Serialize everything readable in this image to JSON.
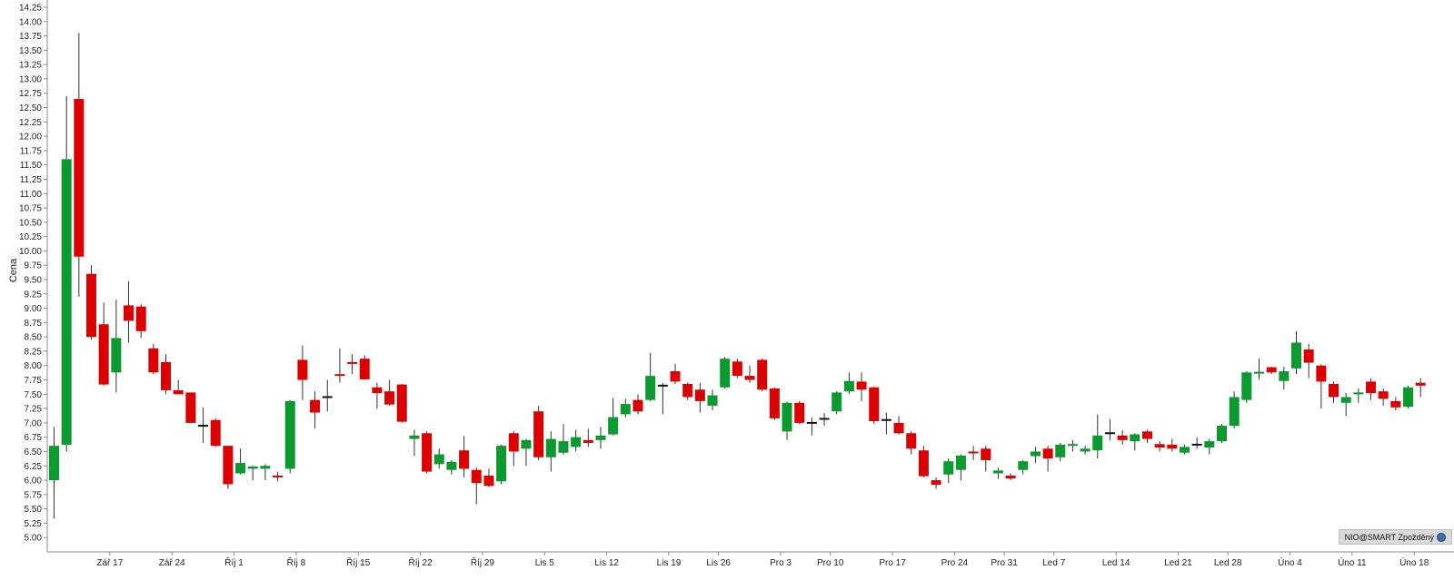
{
  "chart_data": {
    "type": "candlestick",
    "ylabel": "Cena",
    "ylim": [
      4.75,
      14.25
    ],
    "y_ticks": [
      "14.25",
      "14.00",
      "13.75",
      "13.50",
      "13.25",
      "13.00",
      "12.75",
      "12.50",
      "12.25",
      "12.00",
      "11.75",
      "11.50",
      "11.25",
      "11.00",
      "10.75",
      "10.50",
      "10.25",
      "10.00",
      "9.75",
      "9.50",
      "9.25",
      "9.00",
      "8.75",
      "8.50",
      "8.25",
      "8.00",
      "7.75",
      "7.50",
      "7.25",
      "7.00",
      "6.75",
      "6.50",
      "6.25",
      "6.00",
      "5.75",
      "5.50",
      "5.25",
      "5.00"
    ],
    "x_ticks": [
      {
        "label": "Zář 17",
        "index": 2
      },
      {
        "label": "Zář 24",
        "index": 7
      },
      {
        "label": "Říj 1",
        "index": 12
      },
      {
        "label": "Říj 8",
        "index": 17
      },
      {
        "label": "Říj 15",
        "index": 22
      },
      {
        "label": "Říj 22",
        "index": 27
      },
      {
        "label": "Říj 29",
        "index": 32
      },
      {
        "label": "Lis 5",
        "index": 37
      },
      {
        "label": "Lis 12",
        "index": 42
      },
      {
        "label": "Lis 19",
        "index": 47
      },
      {
        "label": "Lis 26",
        "index": 51
      },
      {
        "label": "Pro 3",
        "index": 56
      },
      {
        "label": "Pro 10",
        "index": 60
      },
      {
        "label": "Pro 17",
        "index": 65
      },
      {
        "label": "Pro 24",
        "index": 70
      },
      {
        "label": "Pro 31",
        "index": 74
      },
      {
        "label": "Led 7",
        "index": 78
      },
      {
        "label": "Led 14",
        "index": 83
      },
      {
        "label": "Led 21",
        "index": 88
      },
      {
        "label": "Led 28",
        "index": 92
      },
      {
        "label": "Úno 4",
        "index": 97
      },
      {
        "label": "Úno 11",
        "index": 102
      },
      {
        "label": "Úno 18",
        "index": 107
      }
    ],
    "colors": {
      "up": "#0a9a2f",
      "down": "#dd0000",
      "flat": "#111111",
      "wick": "#333333"
    },
    "candles": [
      {
        "o": 6.0,
        "h": 6.93,
        "l": 5.33,
        "c": 6.6
      },
      {
        "o": 6.62,
        "h": 12.7,
        "l": 6.5,
        "c": 11.6
      },
      {
        "o": 12.65,
        "h": 13.8,
        "l": 9.2,
        "c": 9.9
      },
      {
        "o": 9.6,
        "h": 9.75,
        "l": 8.45,
        "c": 8.5
      },
      {
        "o": 8.72,
        "h": 9.1,
        "l": 7.65,
        "c": 7.67
      },
      {
        "o": 7.88,
        "h": 9.15,
        "l": 7.53,
        "c": 8.48
      },
      {
        "o": 9.05,
        "h": 9.47,
        "l": 8.4,
        "c": 8.78
      },
      {
        "o": 9.03,
        "h": 9.07,
        "l": 8.48,
        "c": 8.6
      },
      {
        "o": 8.3,
        "h": 8.38,
        "l": 7.85,
        "c": 7.88
      },
      {
        "o": 8.06,
        "h": 8.2,
        "l": 7.5,
        "c": 7.57
      },
      {
        "o": 7.57,
        "h": 7.75,
        "l": 7.5,
        "c": 7.5
      },
      {
        "o": 7.53,
        "h": 7.53,
        "l": 7.0,
        "c": 7.0
      },
      {
        "o": 6.95,
        "h": 7.27,
        "l": 6.65,
        "c": 6.95
      },
      {
        "o": 7.05,
        "h": 7.08,
        "l": 6.58,
        "c": 6.6
      },
      {
        "o": 6.6,
        "h": 6.6,
        "l": 5.85,
        "c": 5.93
      },
      {
        "o": 6.12,
        "h": 6.55,
        "l": 6.1,
        "c": 6.3
      },
      {
        "o": 6.2,
        "h": 6.25,
        "l": 6.0,
        "c": 6.24
      },
      {
        "o": 6.2,
        "h": 6.28,
        "l": 6.0,
        "c": 6.25
      },
      {
        "o": 6.08,
        "h": 6.15,
        "l": 5.98,
        "c": 6.05
      },
      {
        "o": 6.2,
        "h": 7.4,
        "l": 6.12,
        "c": 7.38
      },
      {
        "o": 8.1,
        "h": 8.35,
        "l": 7.4,
        "c": 7.75
      },
      {
        "o": 7.4,
        "h": 7.55,
        "l": 6.9,
        "c": 7.18
      },
      {
        "o": 7.45,
        "h": 7.75,
        "l": 7.2,
        "c": 7.45
      },
      {
        "o": 7.85,
        "h": 8.3,
        "l": 7.7,
        "c": 7.82
      },
      {
        "o": 8.05,
        "h": 8.2,
        "l": 7.85,
        "c": 8.04
      },
      {
        "o": 8.12,
        "h": 8.18,
        "l": 7.75,
        "c": 7.76
      },
      {
        "o": 7.62,
        "h": 7.7,
        "l": 7.25,
        "c": 7.52
      },
      {
        "o": 7.55,
        "h": 7.75,
        "l": 7.3,
        "c": 7.32
      },
      {
        "o": 7.67,
        "h": 7.68,
        "l": 7.0,
        "c": 7.02
      },
      {
        "o": 6.72,
        "h": 6.88,
        "l": 6.42,
        "c": 6.78
      },
      {
        "o": 6.82,
        "h": 6.85,
        "l": 6.12,
        "c": 6.15
      },
      {
        "o": 6.28,
        "h": 6.55,
        "l": 6.2,
        "c": 6.45
      },
      {
        "o": 6.18,
        "h": 6.35,
        "l": 6.1,
        "c": 6.32
      },
      {
        "o": 6.52,
        "h": 6.77,
        "l": 6.05,
        "c": 6.2
      },
      {
        "o": 6.18,
        "h": 6.22,
        "l": 5.58,
        "c": 5.95
      },
      {
        "o": 6.08,
        "h": 6.2,
        "l": 5.88,
        "c": 5.9
      },
      {
        "o": 5.98,
        "h": 6.62,
        "l": 5.93,
        "c": 6.6
      },
      {
        "o": 6.82,
        "h": 6.85,
        "l": 6.25,
        "c": 6.5
      },
      {
        "o": 6.55,
        "h": 6.72,
        "l": 6.25,
        "c": 6.7
      },
      {
        "o": 7.2,
        "h": 7.3,
        "l": 6.35,
        "c": 6.4
      },
      {
        "o": 6.4,
        "h": 6.85,
        "l": 6.15,
        "c": 6.72
      },
      {
        "o": 6.48,
        "h": 6.98,
        "l": 6.45,
        "c": 6.68
      },
      {
        "o": 6.58,
        "h": 6.88,
        "l": 6.5,
        "c": 6.75
      },
      {
        "o": 6.7,
        "h": 6.9,
        "l": 6.58,
        "c": 6.65
      },
      {
        "o": 6.7,
        "h": 6.93,
        "l": 6.55,
        "c": 6.78
      },
      {
        "o": 6.8,
        "h": 7.43,
        "l": 6.78,
        "c": 7.1
      },
      {
        "o": 7.15,
        "h": 7.42,
        "l": 7.1,
        "c": 7.33
      },
      {
        "o": 7.4,
        "h": 7.5,
        "l": 7.15,
        "c": 7.2
      },
      {
        "o": 7.4,
        "h": 8.22,
        "l": 7.38,
        "c": 7.82
      },
      {
        "o": 7.65,
        "h": 7.7,
        "l": 7.15,
        "c": 7.65
      },
      {
        "o": 7.9,
        "h": 8.03,
        "l": 7.68,
        "c": 7.72
      },
      {
        "o": 7.68,
        "h": 7.7,
        "l": 7.4,
        "c": 7.45
      },
      {
        "o": 7.58,
        "h": 7.7,
        "l": 7.18,
        "c": 7.38
      },
      {
        "o": 7.3,
        "h": 7.58,
        "l": 7.22,
        "c": 7.48
      },
      {
        "o": 7.62,
        "h": 8.15,
        "l": 7.6,
        "c": 8.12
      },
      {
        "o": 8.07,
        "h": 8.12,
        "l": 7.78,
        "c": 7.82
      },
      {
        "o": 7.82,
        "h": 8.0,
        "l": 7.7,
        "c": 7.75
      },
      {
        "o": 8.1,
        "h": 8.12,
        "l": 7.55,
        "c": 7.58
      },
      {
        "o": 7.6,
        "h": 7.62,
        "l": 7.05,
        "c": 7.08
      },
      {
        "o": 6.85,
        "h": 7.37,
        "l": 6.7,
        "c": 7.35
      },
      {
        "o": 7.35,
        "h": 7.38,
        "l": 6.98,
        "c": 7.0
      },
      {
        "o": 7.0,
        "h": 7.1,
        "l": 6.78,
        "c": 7.0
      },
      {
        "o": 7.07,
        "h": 7.17,
        "l": 6.95,
        "c": 7.07
      },
      {
        "o": 7.2,
        "h": 7.55,
        "l": 7.15,
        "c": 7.53
      },
      {
        "o": 7.55,
        "h": 7.88,
        "l": 7.5,
        "c": 7.73
      },
      {
        "o": 7.72,
        "h": 7.88,
        "l": 7.38,
        "c": 7.58
      },
      {
        "o": 7.62,
        "h": 7.63,
        "l": 6.98,
        "c": 7.03
      },
      {
        "o": 7.05,
        "h": 7.18,
        "l": 6.8,
        "c": 7.05
      },
      {
        "o": 7.0,
        "h": 7.12,
        "l": 6.8,
        "c": 6.82
      },
      {
        "o": 6.82,
        "h": 6.85,
        "l": 6.45,
        "c": 6.55
      },
      {
        "o": 6.52,
        "h": 6.6,
        "l": 6.05,
        "c": 6.07
      },
      {
        "o": 6.0,
        "h": 6.05,
        "l": 5.85,
        "c": 5.92
      },
      {
        "o": 6.1,
        "h": 6.38,
        "l": 5.95,
        "c": 6.33
      },
      {
        "o": 6.18,
        "h": 6.45,
        "l": 6.0,
        "c": 6.43
      },
      {
        "o": 6.5,
        "h": 6.6,
        "l": 6.35,
        "c": 6.47
      },
      {
        "o": 6.55,
        "h": 6.6,
        "l": 6.15,
        "c": 6.35
      },
      {
        "o": 6.12,
        "h": 6.22,
        "l": 6.02,
        "c": 6.17
      },
      {
        "o": 6.08,
        "h": 6.12,
        "l": 6.0,
        "c": 6.03
      },
      {
        "o": 6.18,
        "h": 6.35,
        "l": 6.1,
        "c": 6.33
      },
      {
        "o": 6.42,
        "h": 6.58,
        "l": 6.3,
        "c": 6.5
      },
      {
        "o": 6.55,
        "h": 6.6,
        "l": 6.15,
        "c": 6.38
      },
      {
        "o": 6.4,
        "h": 6.65,
        "l": 6.33,
        "c": 6.62
      },
      {
        "o": 6.6,
        "h": 6.7,
        "l": 6.5,
        "c": 6.63
      },
      {
        "o": 6.5,
        "h": 6.6,
        "l": 6.45,
        "c": 6.55
      },
      {
        "o": 6.52,
        "h": 7.15,
        "l": 6.38,
        "c": 6.78
      },
      {
        "o": 6.82,
        "h": 7.07,
        "l": 6.7,
        "c": 6.82
      },
      {
        "o": 6.78,
        "h": 6.87,
        "l": 6.62,
        "c": 6.7
      },
      {
        "o": 6.68,
        "h": 6.82,
        "l": 6.52,
        "c": 6.8
      },
      {
        "o": 6.85,
        "h": 6.88,
        "l": 6.65,
        "c": 6.72
      },
      {
        "o": 6.63,
        "h": 6.68,
        "l": 6.5,
        "c": 6.57
      },
      {
        "o": 6.62,
        "h": 6.72,
        "l": 6.5,
        "c": 6.55
      },
      {
        "o": 6.48,
        "h": 6.62,
        "l": 6.45,
        "c": 6.58
      },
      {
        "o": 6.62,
        "h": 6.75,
        "l": 6.55,
        "c": 6.62
      },
      {
        "o": 6.57,
        "h": 6.72,
        "l": 6.45,
        "c": 6.68
      },
      {
        "o": 6.68,
        "h": 6.98,
        "l": 6.65,
        "c": 6.95
      },
      {
        "o": 6.95,
        "h": 7.55,
        "l": 6.9,
        "c": 7.45
      },
      {
        "o": 7.4,
        "h": 7.9,
        "l": 7.35,
        "c": 7.88
      },
      {
        "o": 7.87,
        "h": 8.12,
        "l": 7.75,
        "c": 7.88
      },
      {
        "o": 7.97,
        "h": 7.98,
        "l": 7.85,
        "c": 7.88
      },
      {
        "o": 7.73,
        "h": 7.98,
        "l": 7.58,
        "c": 7.9
      },
      {
        "o": 7.95,
        "h": 8.6,
        "l": 7.85,
        "c": 8.4
      },
      {
        "o": 8.28,
        "h": 8.38,
        "l": 7.78,
        "c": 8.05
      },
      {
        "o": 8.0,
        "h": 8.02,
        "l": 7.25,
        "c": 7.72
      },
      {
        "o": 7.68,
        "h": 7.72,
        "l": 7.35,
        "c": 7.45
      },
      {
        "o": 7.35,
        "h": 7.52,
        "l": 7.12,
        "c": 7.45
      },
      {
        "o": 7.5,
        "h": 7.6,
        "l": 7.35,
        "c": 7.53
      },
      {
        "o": 7.72,
        "h": 7.78,
        "l": 7.4,
        "c": 7.52
      },
      {
        "o": 7.55,
        "h": 7.6,
        "l": 7.3,
        "c": 7.42
      },
      {
        "o": 7.38,
        "h": 7.45,
        "l": 7.22,
        "c": 7.27
      },
      {
        "o": 7.28,
        "h": 7.65,
        "l": 7.25,
        "c": 7.62
      },
      {
        "o": 7.7,
        "h": 7.78,
        "l": 7.45,
        "c": 7.65
      }
    ]
  },
  "badge": {
    "label": "NIO@SMART Zpožděný"
  }
}
